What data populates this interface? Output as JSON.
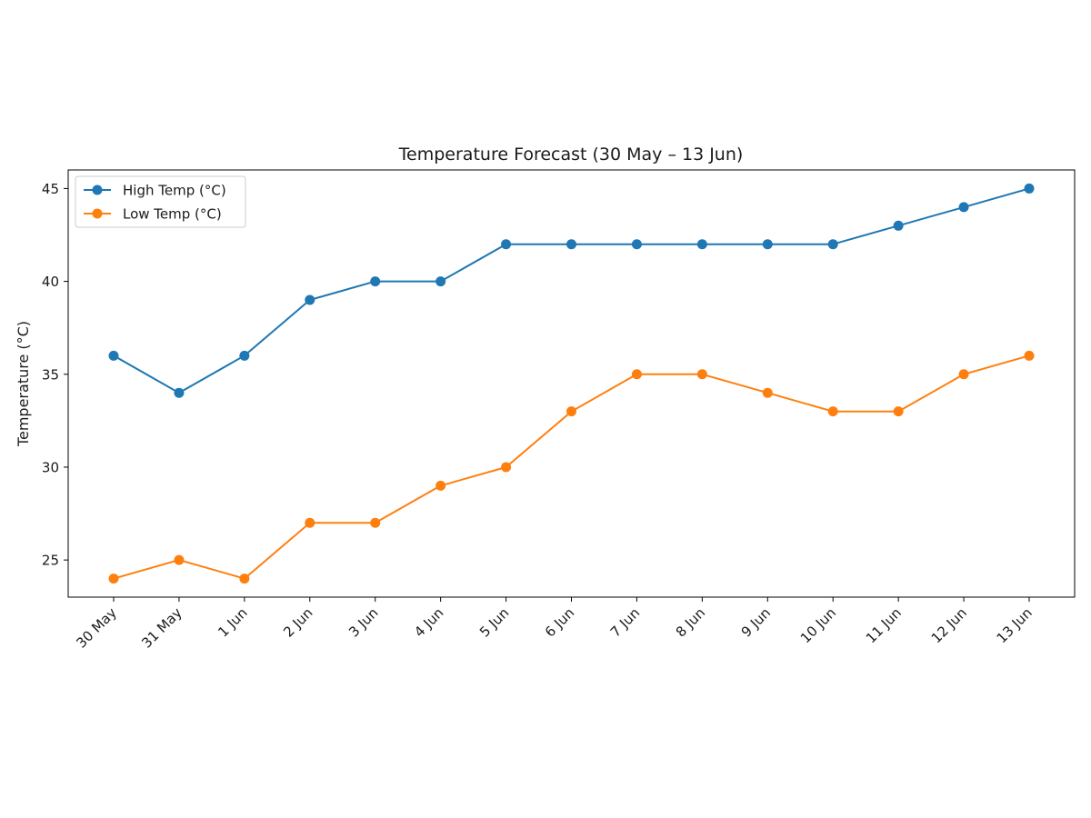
{
  "chart_data": {
    "type": "line",
    "title": "Temperature Forecast (30 May – 13 Jun)",
    "xlabel": "",
    "ylabel": "Temperature (°C)",
    "categories": [
      "30 May",
      "31 May",
      "1 Jun",
      "2 Jun",
      "3 Jun",
      "4 Jun",
      "5 Jun",
      "6 Jun",
      "7 Jun",
      "8 Jun",
      "9 Jun",
      "10 Jun",
      "11 Jun",
      "12 Jun",
      "13 Jun"
    ],
    "series": [
      {
        "name": "High Temp (°C)",
        "color": "#1f77b4",
        "marker": "circle",
        "values": [
          36,
          34,
          36,
          39,
          40,
          40,
          42,
          42,
          42,
          42,
          42,
          42,
          43,
          44,
          45
        ]
      },
      {
        "name": "Low Temp (°C)",
        "color": "#ff7f0e",
        "marker": "circle",
        "values": [
          24,
          25,
          24,
          27,
          27,
          29,
          30,
          33,
          35,
          35,
          34,
          33,
          33,
          35,
          36
        ]
      }
    ],
    "ylim": [
      23,
      46
    ],
    "yticks": [
      25,
      30,
      35,
      40,
      45
    ],
    "grid": false,
    "legend_position": "top-left"
  }
}
